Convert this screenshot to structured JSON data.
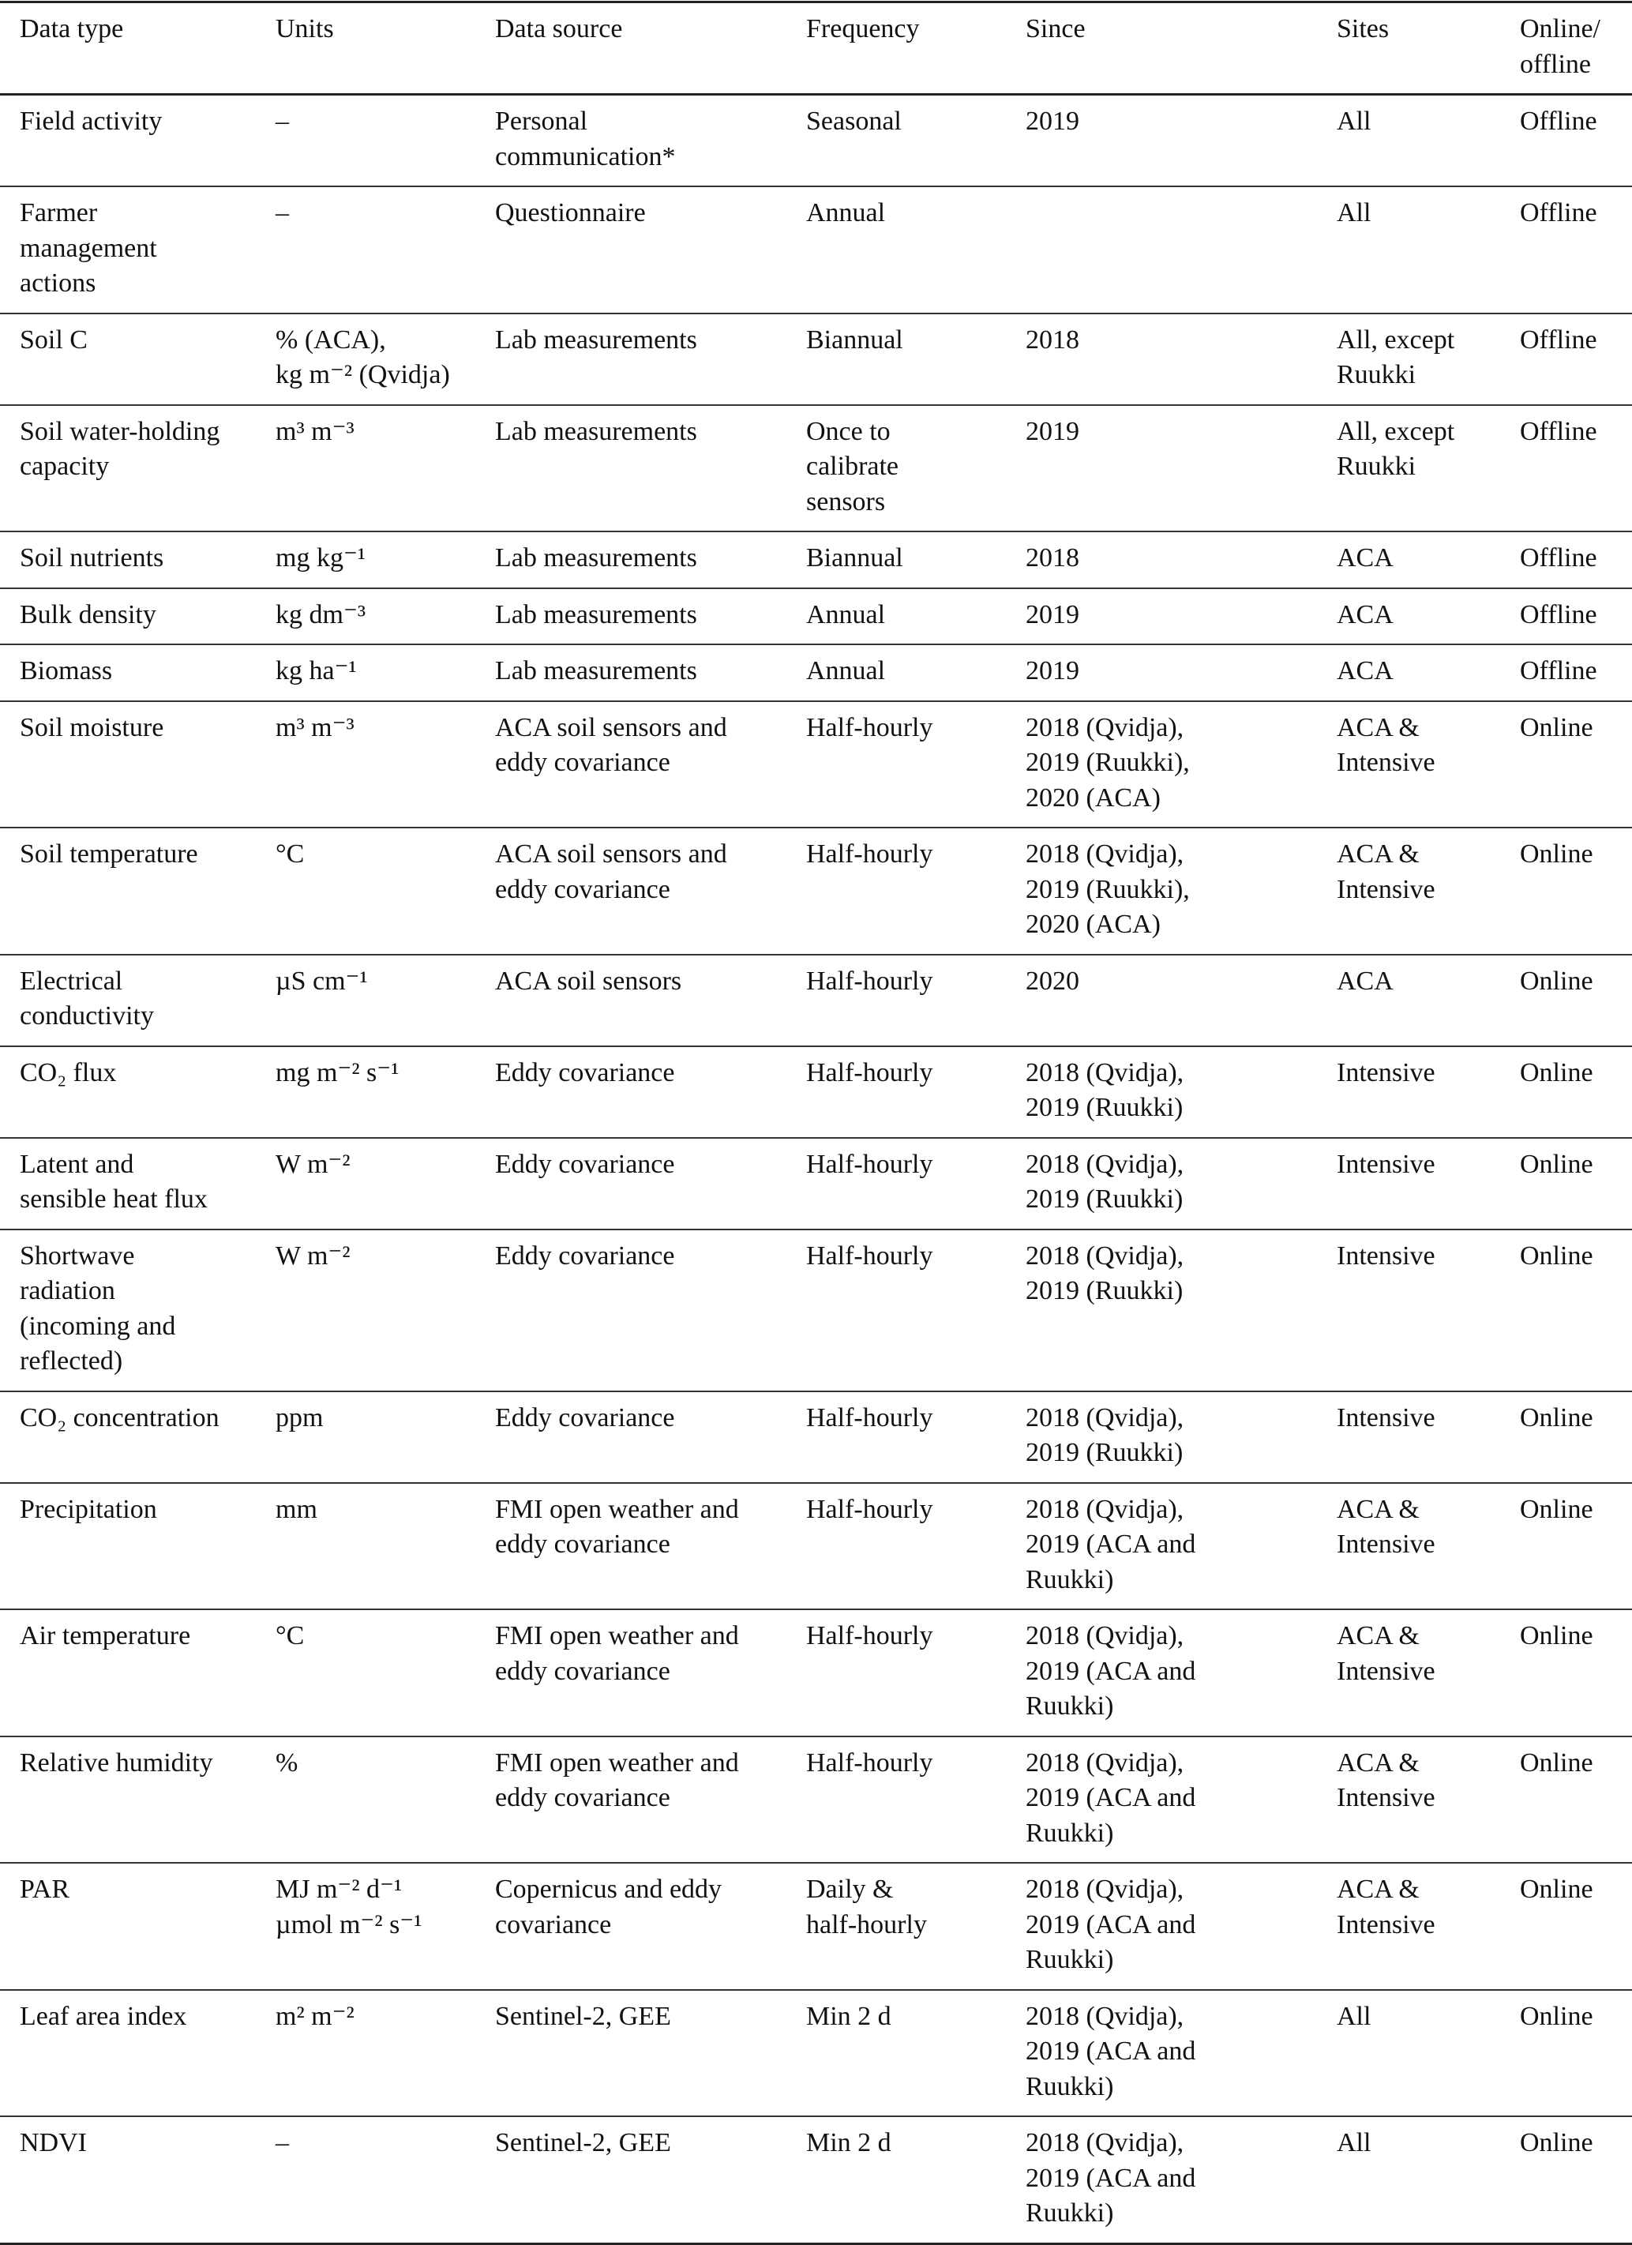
{
  "table": {
    "headers": [
      "Data type",
      "Units",
      "Data source",
      "Frequency",
      "Since",
      "Sites",
      "Online/\noffline"
    ],
    "rows": [
      [
        "Field activity",
        "–",
        "Personal\ncommunication*",
        "Seasonal",
        "2019",
        "All",
        "Offline"
      ],
      [
        "Farmer\nmanagement\nactions",
        "–",
        "Questionnaire",
        "Annual",
        "",
        "All",
        "Offline"
      ],
      [
        "Soil C",
        "% (ACA),\nkg m⁻² (Qvidja)",
        "Lab measurements",
        "Biannual",
        "2018",
        "All, except\nRuukki",
        "Offline"
      ],
      [
        "Soil  water-holding\ncapacity",
        "m³ m⁻³",
        "Lab measurements",
        "Once to\ncalibrate\nsensors",
        "2019",
        "All, except\nRuukki",
        "Offline"
      ],
      [
        "Soil nutrients",
        "mg kg⁻¹",
        "Lab measurements",
        "Biannual",
        "2018",
        "ACA",
        "Offline"
      ],
      [
        "Bulk density",
        "kg dm⁻³",
        "Lab measurements",
        "Annual",
        "2019",
        "ACA",
        "Offline"
      ],
      [
        "Biomass",
        "kg ha⁻¹",
        "Lab measurements",
        "Annual",
        "2019",
        "ACA",
        "Offline"
      ],
      [
        "Soil moisture",
        "m³ m⁻³",
        "ACA soil sensors and\neddy covariance",
        "Half-hourly",
        "2018 (Qvidja),\n2019 (Ruukki),\n2020 (ACA)",
        "ACA &\nIntensive",
        "Online"
      ],
      [
        "Soil temperature",
        "°C",
        "ACA soil sensors and\neddy covariance",
        "Half-hourly",
        "2018 (Qvidja),\n2019 (Ruukki),\n2020 (ACA)",
        "ACA &\nIntensive",
        "Online"
      ],
      [
        "Electrical\nconductivity",
        "µS cm⁻¹",
        "ACA soil sensors",
        "Half-hourly",
        "2020",
        "ACA",
        "Online"
      ],
      [
        "CO₂ flux",
        "mg m⁻² s⁻¹",
        "Eddy covariance",
        "Half-hourly",
        "2018 (Qvidja),\n2019 (Ruukki)",
        "Intensive",
        "Online"
      ],
      [
        "Latent and\nsensible heat flux",
        "W m⁻²",
        "Eddy covariance",
        "Half-hourly",
        "2018 (Qvidja),\n2019 (Ruukki)",
        "Intensive",
        "Online"
      ],
      [
        "Shortwave\nradiation\n(incoming and\nreflected)",
        "W m⁻²",
        "Eddy covariance",
        "Half-hourly",
        "2018 (Qvidja),\n2019 (Ruukki)",
        "Intensive",
        "Online"
      ],
      [
        "CO₂ concentration",
        "ppm",
        "Eddy covariance",
        "Half-hourly",
        "2018 (Qvidja),\n2019 (Ruukki)",
        "Intensive",
        "Online"
      ],
      [
        "Precipitation",
        "mm",
        "FMI open weather and\neddy covariance",
        "Half-hourly",
        "2018 (Qvidja),\n2019 (ACA and\nRuukki)",
        "ACA &\nIntensive",
        "Online"
      ],
      [
        "Air temperature",
        "°C",
        "FMI open weather and\neddy covariance",
        "Half-hourly",
        "2018 (Qvidja),\n2019 (ACA and\nRuukki)",
        "ACA &\nIntensive",
        "Online"
      ],
      [
        "Relative humidity",
        "%",
        "FMI open weather and\neddy covariance",
        "Half-hourly",
        "2018 (Qvidja),\n2019 (ACA and\nRuukki)",
        "ACA &\nIntensive",
        "Online"
      ],
      [
        "PAR",
        "MJ m⁻² d⁻¹\nµmol m⁻² s⁻¹",
        "Copernicus and eddy\ncovariance",
        "Daily &\nhalf-hourly",
        "2018 (Qvidja),\n2019 (ACA and\nRuukki)",
        "ACA &\nIntensive",
        "Online"
      ],
      [
        "Leaf area index",
        "m² m⁻²",
        "Sentinel-2, GEE",
        "Min 2 d",
        "2018 (Qvidja),\n2019 (ACA and\nRuukki)",
        "All",
        "Online"
      ],
      [
        "NDVI",
        "–",
        "Sentinel-2, GEE",
        "Min 2 d",
        "2018 (Qvidja),\n2019 (ACA and\nRuukki)",
        "All",
        "Online"
      ]
    ]
  }
}
